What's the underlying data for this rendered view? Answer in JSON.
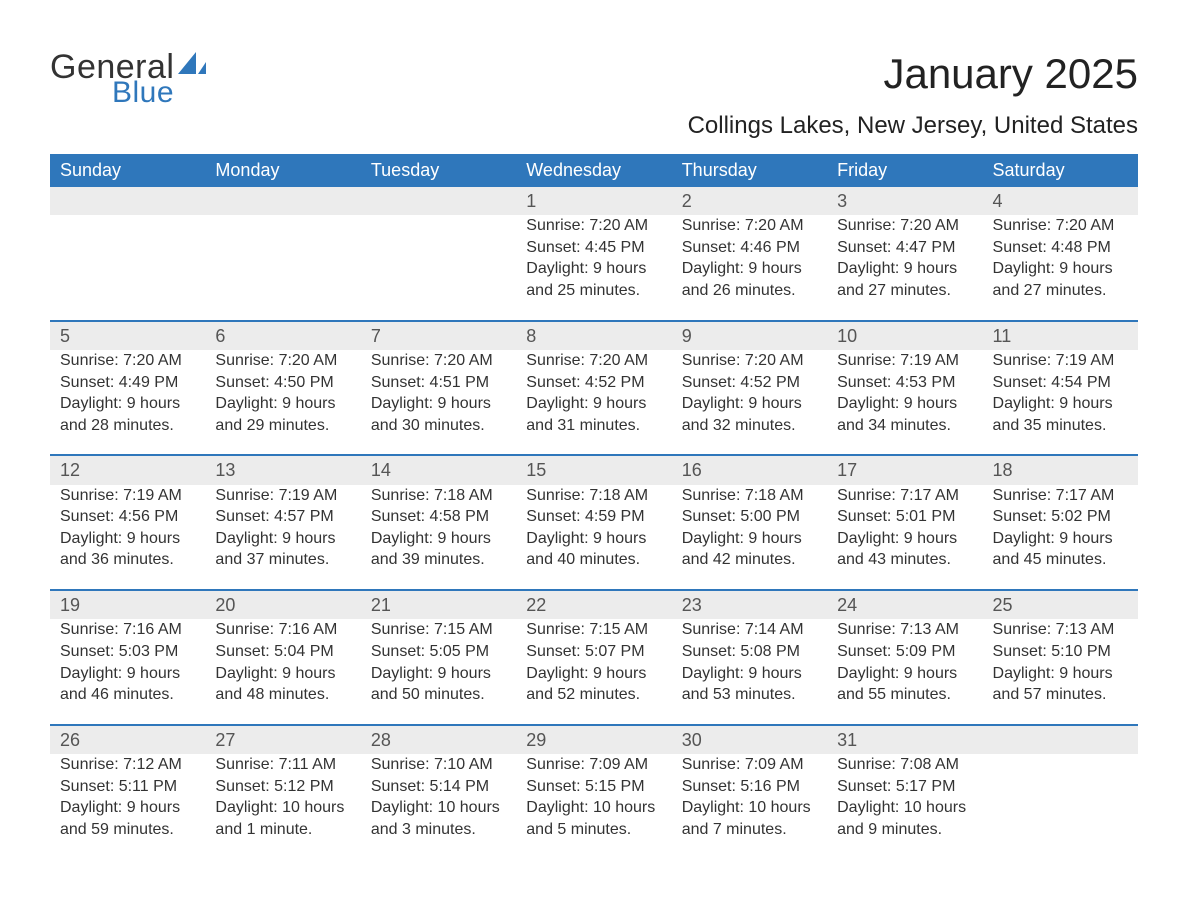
{
  "brand": {
    "general": "General",
    "blue": "Blue",
    "accent_color": "#2f77bb"
  },
  "title": "January 2025",
  "location": "Collings Lakes, New Jersey, United States",
  "colors": {
    "header_bg": "#2f77bb",
    "header_text": "#ffffff",
    "daynum_bg": "#ececec",
    "text": "#333333",
    "background": "#ffffff"
  },
  "weekday_labels": [
    "Sunday",
    "Monday",
    "Tuesday",
    "Wednesday",
    "Thursday",
    "Friday",
    "Saturday"
  ],
  "weeks": [
    [
      null,
      null,
      null,
      {
        "n": "1",
        "sunrise": "Sunrise: 7:20 AM",
        "sunset": "Sunset: 4:45 PM",
        "day1": "Daylight: 9 hours",
        "day2": "and 25 minutes."
      },
      {
        "n": "2",
        "sunrise": "Sunrise: 7:20 AM",
        "sunset": "Sunset: 4:46 PM",
        "day1": "Daylight: 9 hours",
        "day2": "and 26 minutes."
      },
      {
        "n": "3",
        "sunrise": "Sunrise: 7:20 AM",
        "sunset": "Sunset: 4:47 PM",
        "day1": "Daylight: 9 hours",
        "day2": "and 27 minutes."
      },
      {
        "n": "4",
        "sunrise": "Sunrise: 7:20 AM",
        "sunset": "Sunset: 4:48 PM",
        "day1": "Daylight: 9 hours",
        "day2": "and 27 minutes."
      }
    ],
    [
      {
        "n": "5",
        "sunrise": "Sunrise: 7:20 AM",
        "sunset": "Sunset: 4:49 PM",
        "day1": "Daylight: 9 hours",
        "day2": "and 28 minutes."
      },
      {
        "n": "6",
        "sunrise": "Sunrise: 7:20 AM",
        "sunset": "Sunset: 4:50 PM",
        "day1": "Daylight: 9 hours",
        "day2": "and 29 minutes."
      },
      {
        "n": "7",
        "sunrise": "Sunrise: 7:20 AM",
        "sunset": "Sunset: 4:51 PM",
        "day1": "Daylight: 9 hours",
        "day2": "and 30 minutes."
      },
      {
        "n": "8",
        "sunrise": "Sunrise: 7:20 AM",
        "sunset": "Sunset: 4:52 PM",
        "day1": "Daylight: 9 hours",
        "day2": "and 31 minutes."
      },
      {
        "n": "9",
        "sunrise": "Sunrise: 7:20 AM",
        "sunset": "Sunset: 4:52 PM",
        "day1": "Daylight: 9 hours",
        "day2": "and 32 minutes."
      },
      {
        "n": "10",
        "sunrise": "Sunrise: 7:19 AM",
        "sunset": "Sunset: 4:53 PM",
        "day1": "Daylight: 9 hours",
        "day2": "and 34 minutes."
      },
      {
        "n": "11",
        "sunrise": "Sunrise: 7:19 AM",
        "sunset": "Sunset: 4:54 PM",
        "day1": "Daylight: 9 hours",
        "day2": "and 35 minutes."
      }
    ],
    [
      {
        "n": "12",
        "sunrise": "Sunrise: 7:19 AM",
        "sunset": "Sunset: 4:56 PM",
        "day1": "Daylight: 9 hours",
        "day2": "and 36 minutes."
      },
      {
        "n": "13",
        "sunrise": "Sunrise: 7:19 AM",
        "sunset": "Sunset: 4:57 PM",
        "day1": "Daylight: 9 hours",
        "day2": "and 37 minutes."
      },
      {
        "n": "14",
        "sunrise": "Sunrise: 7:18 AM",
        "sunset": "Sunset: 4:58 PM",
        "day1": "Daylight: 9 hours",
        "day2": "and 39 minutes."
      },
      {
        "n": "15",
        "sunrise": "Sunrise: 7:18 AM",
        "sunset": "Sunset: 4:59 PM",
        "day1": "Daylight: 9 hours",
        "day2": "and 40 minutes."
      },
      {
        "n": "16",
        "sunrise": "Sunrise: 7:18 AM",
        "sunset": "Sunset: 5:00 PM",
        "day1": "Daylight: 9 hours",
        "day2": "and 42 minutes."
      },
      {
        "n": "17",
        "sunrise": "Sunrise: 7:17 AM",
        "sunset": "Sunset: 5:01 PM",
        "day1": "Daylight: 9 hours",
        "day2": "and 43 minutes."
      },
      {
        "n": "18",
        "sunrise": "Sunrise: 7:17 AM",
        "sunset": "Sunset: 5:02 PM",
        "day1": "Daylight: 9 hours",
        "day2": "and 45 minutes."
      }
    ],
    [
      {
        "n": "19",
        "sunrise": "Sunrise: 7:16 AM",
        "sunset": "Sunset: 5:03 PM",
        "day1": "Daylight: 9 hours",
        "day2": "and 46 minutes."
      },
      {
        "n": "20",
        "sunrise": "Sunrise: 7:16 AM",
        "sunset": "Sunset: 5:04 PM",
        "day1": "Daylight: 9 hours",
        "day2": "and 48 minutes."
      },
      {
        "n": "21",
        "sunrise": "Sunrise: 7:15 AM",
        "sunset": "Sunset: 5:05 PM",
        "day1": "Daylight: 9 hours",
        "day2": "and 50 minutes."
      },
      {
        "n": "22",
        "sunrise": "Sunrise: 7:15 AM",
        "sunset": "Sunset: 5:07 PM",
        "day1": "Daylight: 9 hours",
        "day2": "and 52 minutes."
      },
      {
        "n": "23",
        "sunrise": "Sunrise: 7:14 AM",
        "sunset": "Sunset: 5:08 PM",
        "day1": "Daylight: 9 hours",
        "day2": "and 53 minutes."
      },
      {
        "n": "24",
        "sunrise": "Sunrise: 7:13 AM",
        "sunset": "Sunset: 5:09 PM",
        "day1": "Daylight: 9 hours",
        "day2": "and 55 minutes."
      },
      {
        "n": "25",
        "sunrise": "Sunrise: 7:13 AM",
        "sunset": "Sunset: 5:10 PM",
        "day1": "Daylight: 9 hours",
        "day2": "and 57 minutes."
      }
    ],
    [
      {
        "n": "26",
        "sunrise": "Sunrise: 7:12 AM",
        "sunset": "Sunset: 5:11 PM",
        "day1": "Daylight: 9 hours",
        "day2": "and 59 minutes."
      },
      {
        "n": "27",
        "sunrise": "Sunrise: 7:11 AM",
        "sunset": "Sunset: 5:12 PM",
        "day1": "Daylight: 10 hours",
        "day2": "and 1 minute."
      },
      {
        "n": "28",
        "sunrise": "Sunrise: 7:10 AM",
        "sunset": "Sunset: 5:14 PM",
        "day1": "Daylight: 10 hours",
        "day2": "and 3 minutes."
      },
      {
        "n": "29",
        "sunrise": "Sunrise: 7:09 AM",
        "sunset": "Sunset: 5:15 PM",
        "day1": "Daylight: 10 hours",
        "day2": "and 5 minutes."
      },
      {
        "n": "30",
        "sunrise": "Sunrise: 7:09 AM",
        "sunset": "Sunset: 5:16 PM",
        "day1": "Daylight: 10 hours",
        "day2": "and 7 minutes."
      },
      {
        "n": "31",
        "sunrise": "Sunrise: 7:08 AM",
        "sunset": "Sunset: 5:17 PM",
        "day1": "Daylight: 10 hours",
        "day2": "and 9 minutes."
      },
      null
    ]
  ]
}
